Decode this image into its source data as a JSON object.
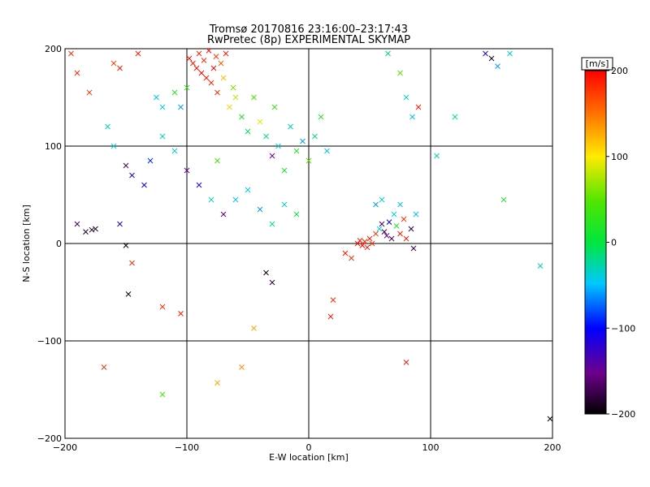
{
  "chart_data": {
    "type": "scatter",
    "title": "Tromsø 20170816 23:16:00–23:17:43",
    "subtitle": "RwPretec (8p) EXPERIMENTAL SKYMAP",
    "xlabel": "E-W location [km]",
    "ylabel": "N-S location [km]",
    "xlim": [
      -200,
      200
    ],
    "ylim": [
      -200,
      200
    ],
    "xticks": [
      -200,
      -100,
      0,
      100,
      200
    ],
    "yticks": [
      -200,
      -100,
      0,
      100,
      200
    ],
    "grid": true,
    "colorbar": {
      "label": "[m/s]",
      "min": -200,
      "max": 200,
      "ticks": [
        200,
        100,
        0,
        -100,
        -200
      ],
      "colormap": "rainbow (black-purple-blue-cyan-green-yellow-red)"
    },
    "marker_note": "x markers for larger echoes, dots for smaller",
    "points": [
      {
        "x": -195,
        "y": 195,
        "v": 180,
        "m": "x"
      },
      {
        "x": -190,
        "y": 175,
        "v": 185,
        "m": "x"
      },
      {
        "x": -180,
        "y": 155,
        "v": 175,
        "m": "x"
      },
      {
        "x": -160,
        "y": 185,
        "v": 170,
        "m": "x"
      },
      {
        "x": -155,
        "y": 180,
        "v": 190,
        "m": "x"
      },
      {
        "x": -140,
        "y": 195,
        "v": 190,
        "m": "x"
      },
      {
        "x": -125,
        "y": 150,
        "v": -50,
        "m": "x"
      },
      {
        "x": -120,
        "y": 140,
        "v": -40,
        "m": "x"
      },
      {
        "x": -110,
        "y": 155,
        "v": 20,
        "m": "x"
      },
      {
        "x": -105,
        "y": 140,
        "v": -60,
        "m": "x"
      },
      {
        "x": -100,
        "y": 160,
        "v": 30,
        "m": "x"
      },
      {
        "x": -98,
        "y": 190,
        "v": 195,
        "m": "x"
      },
      {
        "x": -95,
        "y": 185,
        "v": 190,
        "m": "x"
      },
      {
        "x": -92,
        "y": 180,
        "v": 195,
        "m": "x"
      },
      {
        "x": -90,
        "y": 195,
        "v": 185,
        "m": "x"
      },
      {
        "x": -88,
        "y": 175,
        "v": 200,
        "m": "x"
      },
      {
        "x": -86,
        "y": 188,
        "v": 180,
        "m": "x"
      },
      {
        "x": -84,
        "y": 170,
        "v": 190,
        "m": "x"
      },
      {
        "x": -82,
        "y": 198,
        "v": 195,
        "m": "x"
      },
      {
        "x": -80,
        "y": 165,
        "v": 185,
        "m": "x"
      },
      {
        "x": -78,
        "y": 180,
        "v": 200,
        "m": "x"
      },
      {
        "x": -76,
        "y": 192,
        "v": 175,
        "m": "x"
      },
      {
        "x": -75,
        "y": 155,
        "v": 180,
        "m": "x"
      },
      {
        "x": -72,
        "y": 185,
        "v": 160,
        "m": "x"
      },
      {
        "x": -70,
        "y": 170,
        "v": 120,
        "m": "x"
      },
      {
        "x": -68,
        "y": 195,
        "v": 190,
        "m": "x"
      },
      {
        "x": -65,
        "y": 140,
        "v": 110,
        "m": "x"
      },
      {
        "x": -62,
        "y": 160,
        "v": 60,
        "m": "x"
      },
      {
        "x": -60,
        "y": 150,
        "v": 80,
        "m": "x"
      },
      {
        "x": -55,
        "y": 130,
        "v": 20,
        "m": "x"
      },
      {
        "x": -50,
        "y": 115,
        "v": -10,
        "m": "x"
      },
      {
        "x": -45,
        "y": 150,
        "v": 40,
        "m": "x"
      },
      {
        "x": -40,
        "y": 125,
        "v": 90,
        "m": "x"
      },
      {
        "x": -35,
        "y": 110,
        "v": -20,
        "m": "x"
      },
      {
        "x": -30,
        "y": 90,
        "v": -150,
        "m": "x"
      },
      {
        "x": -28,
        "y": 140,
        "v": 30,
        "m": "x"
      },
      {
        "x": -25,
        "y": 100,
        "v": -40,
        "m": "x"
      },
      {
        "x": -20,
        "y": 75,
        "v": 10,
        "m": "x"
      },
      {
        "x": -15,
        "y": 120,
        "v": -30,
        "m": "x"
      },
      {
        "x": -10,
        "y": 95,
        "v": 20,
        "m": "x"
      },
      {
        "x": -5,
        "y": 105,
        "v": -60,
        "m": "x"
      },
      {
        "x": 0,
        "y": 85,
        "v": 50,
        "m": "x"
      },
      {
        "x": 5,
        "y": 110,
        "v": -20,
        "m": "x"
      },
      {
        "x": 10,
        "y": 130,
        "v": 15,
        "m": "x"
      },
      {
        "x": 15,
        "y": 95,
        "v": -40,
        "m": "x"
      },
      {
        "x": -165,
        "y": 120,
        "v": -30,
        "m": "x"
      },
      {
        "x": -160,
        "y": 100,
        "v": -40,
        "m": "x"
      },
      {
        "x": -150,
        "y": 80,
        "v": -170,
        "m": "x"
      },
      {
        "x": -145,
        "y": 70,
        "v": -120,
        "m": "x"
      },
      {
        "x": -135,
        "y": 60,
        "v": -100,
        "m": "x"
      },
      {
        "x": -130,
        "y": 85,
        "v": -90,
        "m": "x"
      },
      {
        "x": -120,
        "y": 110,
        "v": -30,
        "m": "x"
      },
      {
        "x": -110,
        "y": 95,
        "v": -40,
        "m": "x"
      },
      {
        "x": -100,
        "y": 75,
        "v": -150,
        "m": "x"
      },
      {
        "x": -90,
        "y": 60,
        "v": -110,
        "m": "x"
      },
      {
        "x": -80,
        "y": 45,
        "v": -30,
        "m": "x"
      },
      {
        "x": -75,
        "y": 85,
        "v": 40,
        "m": "x"
      },
      {
        "x": -70,
        "y": 30,
        "v": -160,
        "m": "x"
      },
      {
        "x": -60,
        "y": 45,
        "v": -50,
        "m": "x"
      },
      {
        "x": -50,
        "y": 55,
        "v": -40,
        "m": "x"
      },
      {
        "x": -40,
        "y": 35,
        "v": -60,
        "m": "x"
      },
      {
        "x": -30,
        "y": 20,
        "v": -20,
        "m": "x"
      },
      {
        "x": -20,
        "y": 40,
        "v": -40,
        "m": "x"
      },
      {
        "x": -10,
        "y": 30,
        "v": 0,
        "m": "x"
      },
      {
        "x": -190,
        "y": 20,
        "v": -170,
        "m": "x"
      },
      {
        "x": -183,
        "y": 12,
        "v": -190,
        "m": "x"
      },
      {
        "x": -178,
        "y": 14,
        "v": -190,
        "m": "x"
      },
      {
        "x": -175,
        "y": 15,
        "v": -185,
        "m": "x"
      },
      {
        "x": -155,
        "y": 20,
        "v": -110,
        "m": "x"
      },
      {
        "x": -150,
        "y": -2,
        "v": -200,
        "m": "x"
      },
      {
        "x": -145,
        "y": -20,
        "v": 180,
        "m": "x"
      },
      {
        "x": -148,
        "y": -52,
        "v": -190,
        "m": "x"
      },
      {
        "x": -120,
        "y": -65,
        "v": 180,
        "m": "x"
      },
      {
        "x": -105,
        "y": -72,
        "v": 190,
        "m": "x"
      },
      {
        "x": -35,
        "y": -30,
        "v": -200,
        "m": "x"
      },
      {
        "x": -30,
        "y": -40,
        "v": -180,
        "m": "x"
      },
      {
        "x": -45,
        "y": -87,
        "v": 130,
        "m": "x"
      },
      {
        "x": 20,
        "y": -58,
        "v": 180,
        "m": "x"
      },
      {
        "x": 18,
        "y": -75,
        "v": 190,
        "m": "x"
      },
      {
        "x": 30,
        "y": -10,
        "v": 190,
        "m": "x"
      },
      {
        "x": 35,
        "y": -15,
        "v": 180,
        "m": "x"
      },
      {
        "x": 40,
        "y": 0,
        "v": 195,
        "m": "x"
      },
      {
        "x": 42,
        "y": 3,
        "v": 190,
        "m": "x"
      },
      {
        "x": 44,
        "y": -2,
        "v": 200,
        "m": "x"
      },
      {
        "x": 46,
        "y": 2,
        "v": 185,
        "m": "x"
      },
      {
        "x": 48,
        "y": -4,
        "v": 195,
        "m": "x"
      },
      {
        "x": 50,
        "y": 5,
        "v": 190,
        "m": "x"
      },
      {
        "x": 52,
        "y": 0,
        "v": 180,
        "m": "x"
      },
      {
        "x": 55,
        "y": 10,
        "v": 175,
        "m": "x"
      },
      {
        "x": 58,
        "y": 15,
        "v": -40,
        "m": "x"
      },
      {
        "x": 60,
        "y": 20,
        "v": -170,
        "m": "x"
      },
      {
        "x": 62,
        "y": 12,
        "v": -180,
        "m": "x"
      },
      {
        "x": 64,
        "y": 8,
        "v": -150,
        "m": "x"
      },
      {
        "x": 66,
        "y": 22,
        "v": -100,
        "m": "x"
      },
      {
        "x": 68,
        "y": 5,
        "v": -170,
        "m": "x"
      },
      {
        "x": 70,
        "y": 30,
        "v": -40,
        "m": "x"
      },
      {
        "x": 72,
        "y": 18,
        "v": 20,
        "m": "x"
      },
      {
        "x": 75,
        "y": 10,
        "v": 190,
        "m": "x"
      },
      {
        "x": 78,
        "y": 25,
        "v": 180,
        "m": "x"
      },
      {
        "x": 80,
        "y": 5,
        "v": 190,
        "m": "x"
      },
      {
        "x": 84,
        "y": 15,
        "v": -180,
        "m": "x"
      },
      {
        "x": 86,
        "y": -5,
        "v": -170,
        "m": "x"
      },
      {
        "x": 88,
        "y": 30,
        "v": -50,
        "m": "x"
      },
      {
        "x": 55,
        "y": 40,
        "v": -60,
        "m": "x"
      },
      {
        "x": 60,
        "y": 45,
        "v": -30,
        "m": "x"
      },
      {
        "x": 75,
        "y": 40,
        "v": -40,
        "m": "x"
      },
      {
        "x": 80,
        "y": 150,
        "v": -30,
        "m": "x"
      },
      {
        "x": 85,
        "y": 130,
        "v": -40,
        "m": "x"
      },
      {
        "x": 90,
        "y": 140,
        "v": 190,
        "m": "x"
      },
      {
        "x": 75,
        "y": 175,
        "v": 50,
        "m": "x"
      },
      {
        "x": 65,
        "y": 195,
        "v": -20,
        "m": "x"
      },
      {
        "x": 145,
        "y": 195,
        "v": -120,
        "m": "x"
      },
      {
        "x": 150,
        "y": 190,
        "v": -190,
        "m": "x"
      },
      {
        "x": 155,
        "y": 182,
        "v": -60,
        "m": "x"
      },
      {
        "x": 165,
        "y": 195,
        "v": -40,
        "m": "x"
      },
      {
        "x": 120,
        "y": 130,
        "v": -30,
        "m": "x"
      },
      {
        "x": 105,
        "y": 90,
        "v": -30,
        "m": "x"
      },
      {
        "x": 160,
        "y": 45,
        "v": 20,
        "m": "x"
      },
      {
        "x": 190,
        "y": -23,
        "v": -30,
        "m": "x"
      },
      {
        "x": 80,
        "y": -122,
        "v": 190,
        "m": "x"
      },
      {
        "x": -168,
        "y": -127,
        "v": 180,
        "m": "x"
      },
      {
        "x": -120,
        "y": -155,
        "v": 40,
        "m": "x"
      },
      {
        "x": -75,
        "y": -143,
        "v": 130,
        "m": "x"
      },
      {
        "x": -55,
        "y": -127,
        "v": 140,
        "m": "x"
      },
      {
        "x": 198,
        "y": -180,
        "v": -200,
        "m": "x"
      }
    ]
  }
}
